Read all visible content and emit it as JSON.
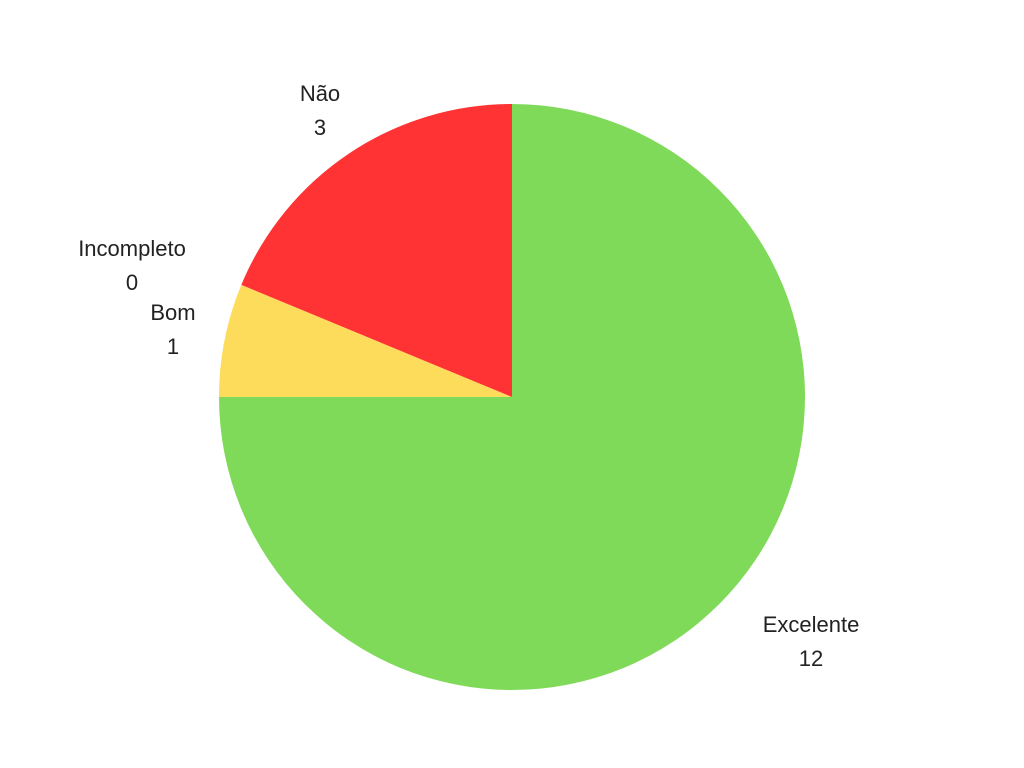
{
  "chart_data": {
    "type": "pie",
    "slices": [
      {
        "label": "Excelente",
        "value": 12,
        "color": "#80DA5A"
      },
      {
        "label": "Bom",
        "value": 1,
        "color": "#FDDC5C"
      },
      {
        "label": "Incompleto",
        "value": 0,
        "color": "#FFA630"
      },
      {
        "label": "Não",
        "value": 3,
        "color": "#FF3333"
      }
    ]
  }
}
